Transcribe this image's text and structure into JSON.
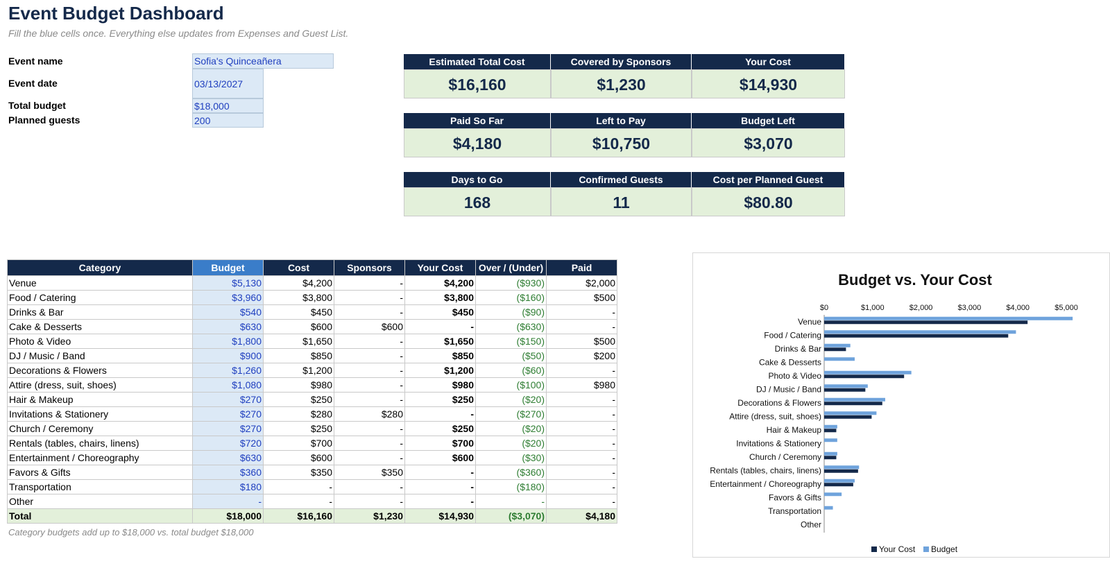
{
  "title": "Event Budget Dashboard",
  "subtitle": "Fill the blue cells once. Everything else updates from Expenses and Guest List.",
  "inputs": [
    {
      "label": "Event name",
      "value": "Sofia's Quinceañera"
    },
    {
      "label": "Event date",
      "value": "03/13/2027"
    },
    {
      "label": "Total budget",
      "value": "$18,000"
    },
    {
      "label": "Planned guests",
      "value": "200"
    }
  ],
  "kpis": [
    {
      "label": "Estimated Total Cost",
      "value": "$16,160"
    },
    {
      "label": "Covered by Sponsors",
      "value": "$1,230"
    },
    {
      "label": "Your Cost",
      "value": "$14,930"
    },
    {
      "label": "Paid So Far",
      "value": "$4,180"
    },
    {
      "label": "Left to Pay",
      "value": "$10,750"
    },
    {
      "label": "Budget Left",
      "value": "$3,070"
    },
    {
      "label": "Days to Go",
      "value": "168"
    },
    {
      "label": "Confirmed Guests",
      "value": "11"
    },
    {
      "label": "Cost per Planned Guest",
      "value": "$80.80"
    }
  ],
  "table": {
    "headers": [
      "Category",
      "Budget",
      "Cost",
      "Sponsors",
      "Your Cost",
      "Over / (Under)",
      "Paid"
    ],
    "rows": [
      [
        "Venue",
        "$5,130",
        "$4,200",
        "-",
        "$4,200",
        "($930)",
        "$2,000"
      ],
      [
        "Food / Catering",
        "$3,960",
        "$3,800",
        "-",
        "$3,800",
        "($160)",
        "$500"
      ],
      [
        "Drinks & Bar",
        "$540",
        "$450",
        "-",
        "$450",
        "($90)",
        "-"
      ],
      [
        "Cake & Desserts",
        "$630",
        "$600",
        "$600",
        "-",
        "($630)",
        "-"
      ],
      [
        "Photo & Video",
        "$1,800",
        "$1,650",
        "-",
        "$1,650",
        "($150)",
        "$500"
      ],
      [
        "DJ / Music / Band",
        "$900",
        "$850",
        "-",
        "$850",
        "($50)",
        "$200"
      ],
      [
        "Decorations & Flowers",
        "$1,260",
        "$1,200",
        "-",
        "$1,200",
        "($60)",
        "-"
      ],
      [
        "Attire (dress, suit, shoes)",
        "$1,080",
        "$980",
        "-",
        "$980",
        "($100)",
        "$980"
      ],
      [
        "Hair & Makeup",
        "$270",
        "$250",
        "-",
        "$250",
        "($20)",
        "-"
      ],
      [
        "Invitations & Stationery",
        "$270",
        "$280",
        "$280",
        "-",
        "($270)",
        "-"
      ],
      [
        "Church / Ceremony",
        "$270",
        "$250",
        "-",
        "$250",
        "($20)",
        "-"
      ],
      [
        "Rentals (tables, chairs, linens)",
        "$720",
        "$700",
        "-",
        "$700",
        "($20)",
        "-"
      ],
      [
        "Entertainment / Choreography",
        "$630",
        "$600",
        "-",
        "$600",
        "($30)",
        "-"
      ],
      [
        "Favors & Gifts",
        "$360",
        "$350",
        "$350",
        "-",
        "($360)",
        "-"
      ],
      [
        "Transportation",
        "$180",
        "-",
        "-",
        "-",
        "($180)",
        "-"
      ],
      [
        "Other",
        "-",
        "-",
        "-",
        "-",
        "-",
        "-"
      ]
    ],
    "total": [
      "Total",
      "$18,000",
      "$16,160",
      "$1,230",
      "$14,930",
      "($3,070)",
      "$4,180"
    ]
  },
  "note": "Category budgets add up to $18,000 vs. total budget $18,000",
  "colors": {
    "navy": "#14294a",
    "budget_header": "#3a7dc9",
    "input_fill": "#dce9f6",
    "kpi_fill": "#e3f0da",
    "negative_green": "#2e7d32",
    "series_your_cost": "#14294a",
    "series_budget": "#6fa3dc"
  },
  "chart_data": {
    "type": "bar",
    "orientation": "horizontal",
    "title": "Budget vs. Your Cost",
    "categories": [
      "Venue",
      "Food / Catering",
      "Drinks & Bar",
      "Cake & Desserts",
      "Photo & Video",
      "DJ / Music / Band",
      "Decorations & Flowers",
      "Attire (dress, suit, shoes)",
      "Hair & Makeup",
      "Invitations & Stationery",
      "Church / Ceremony",
      "Rentals (tables, chairs, linens)",
      "Entertainment / Choreography",
      "Favors & Gifts",
      "Transportation",
      "Other"
    ],
    "series": [
      {
        "name": "Your Cost",
        "values": [
          4200,
          3800,
          450,
          0,
          1650,
          850,
          1200,
          980,
          250,
          0,
          250,
          700,
          600,
          0,
          0,
          0
        ]
      },
      {
        "name": "Budget",
        "values": [
          5130,
          3960,
          540,
          630,
          1800,
          900,
          1260,
          1080,
          270,
          270,
          270,
          720,
          630,
          360,
          180,
          0
        ]
      }
    ],
    "xticks": [
      "$0",
      "$1,000",
      "$2,000",
      "$3,000",
      "$4,000",
      "$5,000"
    ],
    "xlim": [
      0,
      5300
    ],
    "xaxis_position": "top",
    "legend_position": "bottom",
    "grid": false
  }
}
